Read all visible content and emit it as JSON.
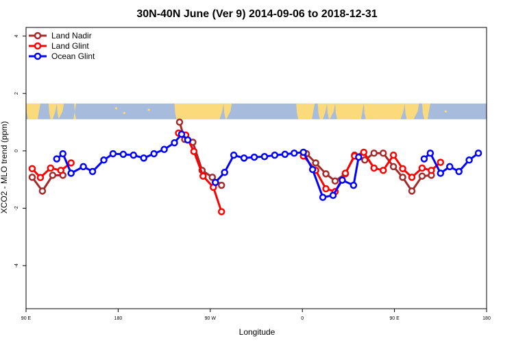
{
  "chart_data": {
    "type": "line",
    "title": "30N-40N June (Ver 9)   2014-09-06 to 2018-12-31",
    "xlabel": "Longitude",
    "ylabel": "XCO2 - MLO trend (ppm)",
    "xlim": [
      90,
      540
    ],
    "ylim": [
      -5.5,
      4.3
    ],
    "x_ticks": [
      {
        "v": 90,
        "label": "90 E"
      },
      {
        "v": 180,
        "label": "180"
      },
      {
        "v": 270,
        "label": "90 W"
      },
      {
        "v": 360,
        "label": "0"
      },
      {
        "v": 450,
        "label": "90 E"
      },
      {
        "v": 540,
        "label": "180"
      }
    ],
    "y_ticks": [
      {
        "v": 4,
        "label": "4"
      },
      {
        "v": 2,
        "label": "2"
      },
      {
        "v": 0,
        "label": "0"
      },
      {
        "v": -2,
        "label": "-2"
      },
      {
        "v": -4,
        "label": "-4"
      }
    ],
    "legend_position": "top-left",
    "map_band": {
      "y_top": 1.65,
      "y_bottom": 1.1,
      "ocean_color": "#A7BCDC",
      "land_color": "#FADA7B"
    },
    "series": [
      {
        "name": "Land Nadir",
        "color": "#A52A2A",
        "segments": [
          [
            [
              96,
              -0.92
            ],
            [
              106,
              -1.4
            ],
            [
              116,
              -0.85
            ],
            [
              126,
              -0.85
            ]
          ],
          [
            [
              240,
              1.0
            ],
            [
              245,
              0.4
            ],
            [
              253,
              0.3
            ],
            [
              262,
              -0.68
            ],
            [
              272,
              -0.92
            ],
            [
              281,
              -1.2
            ]
          ],
          [
            [
              364,
              -0.1
            ],
            [
              373,
              -0.42
            ],
            [
              383,
              -0.8
            ],
            [
              392,
              -1.05
            ],
            [
              402,
              -0.8
            ],
            [
              411,
              -0.15
            ],
            [
              421,
              -0.32
            ],
            [
              430,
              -0.08
            ],
            [
              439,
              -0.08
            ],
            [
              449,
              -0.55
            ],
            [
              458,
              -0.92
            ],
            [
              467,
              -1.4
            ],
            [
              477,
              -0.88
            ],
            [
              486,
              -0.85
            ]
          ]
        ]
      },
      {
        "name": "Land Glint",
        "color": "#FF0000",
        "segments": [
          [
            [
              96,
              -0.62
            ],
            [
              104,
              -0.93
            ],
            [
              114,
              -0.6
            ],
            [
              124,
              -0.68
            ],
            [
              134,
              -0.42
            ]
          ],
          [
            [
              239,
              0.62
            ],
            [
              246,
              0.55
            ],
            [
              254,
              -0.02
            ],
            [
              263,
              -0.88
            ],
            [
              273,
              -1.27
            ],
            [
              281,
              -2.12
            ]
          ],
          [
            [
              361,
              -0.18
            ],
            [
              373,
              -0.68
            ],
            [
              383,
              -1.32
            ],
            [
              392,
              -1.42
            ],
            [
              402,
              -0.78
            ],
            [
              411,
              -0.18
            ],
            [
              420,
              -0.05
            ],
            [
              430,
              -0.6
            ],
            [
              439,
              -0.68
            ],
            [
              449,
              -0.15
            ],
            [
              458,
              -0.62
            ],
            [
              467,
              -0.92
            ],
            [
              477,
              -0.6
            ],
            [
              486,
              -0.68
            ],
            [
              495,
              -0.4
            ]
          ]
        ]
      },
      {
        "name": "Ocean Glint",
        "color": "#0000FF",
        "segments": [
          [
            [
              120,
              -0.28
            ],
            [
              126,
              -0.1
            ],
            [
              134,
              -0.78
            ],
            [
              146,
              -0.55
            ],
            [
              155,
              -0.72
            ],
            [
              166,
              -0.32
            ],
            [
              175,
              -0.1
            ],
            [
              185,
              -0.12
            ],
            [
              195,
              -0.15
            ],
            [
              205,
              -0.25
            ],
            [
              215,
              -0.1
            ],
            [
              225,
              0.05
            ],
            [
              235,
              0.28
            ],
            [
              242,
              0.58
            ],
            [
              248,
              0.38
            ]
          ],
          [
            [
              275,
              -1.1
            ],
            [
              284,
              -0.75
            ],
            [
              293,
              -0.15
            ],
            [
              303,
              -0.25
            ],
            [
              313,
              -0.22
            ],
            [
              323,
              -0.2
            ],
            [
              333,
              -0.15
            ],
            [
              343,
              -0.12
            ],
            [
              352,
              -0.08
            ],
            [
              361,
              -0.05
            ],
            [
              370,
              -0.65
            ],
            [
              380,
              -1.62
            ],
            [
              390,
              -1.55
            ],
            [
              399,
              -1.02
            ],
            [
              410,
              -1.2
            ],
            [
              415,
              -0.22
            ]
          ],
          [
            [
              479,
              -0.28
            ],
            [
              485,
              -0.08
            ],
            [
              495,
              -0.78
            ],
            [
              504,
              -0.55
            ],
            [
              513,
              -0.72
            ],
            [
              523,
              -0.32
            ],
            [
              532,
              -0.08
            ]
          ]
        ]
      }
    ]
  }
}
